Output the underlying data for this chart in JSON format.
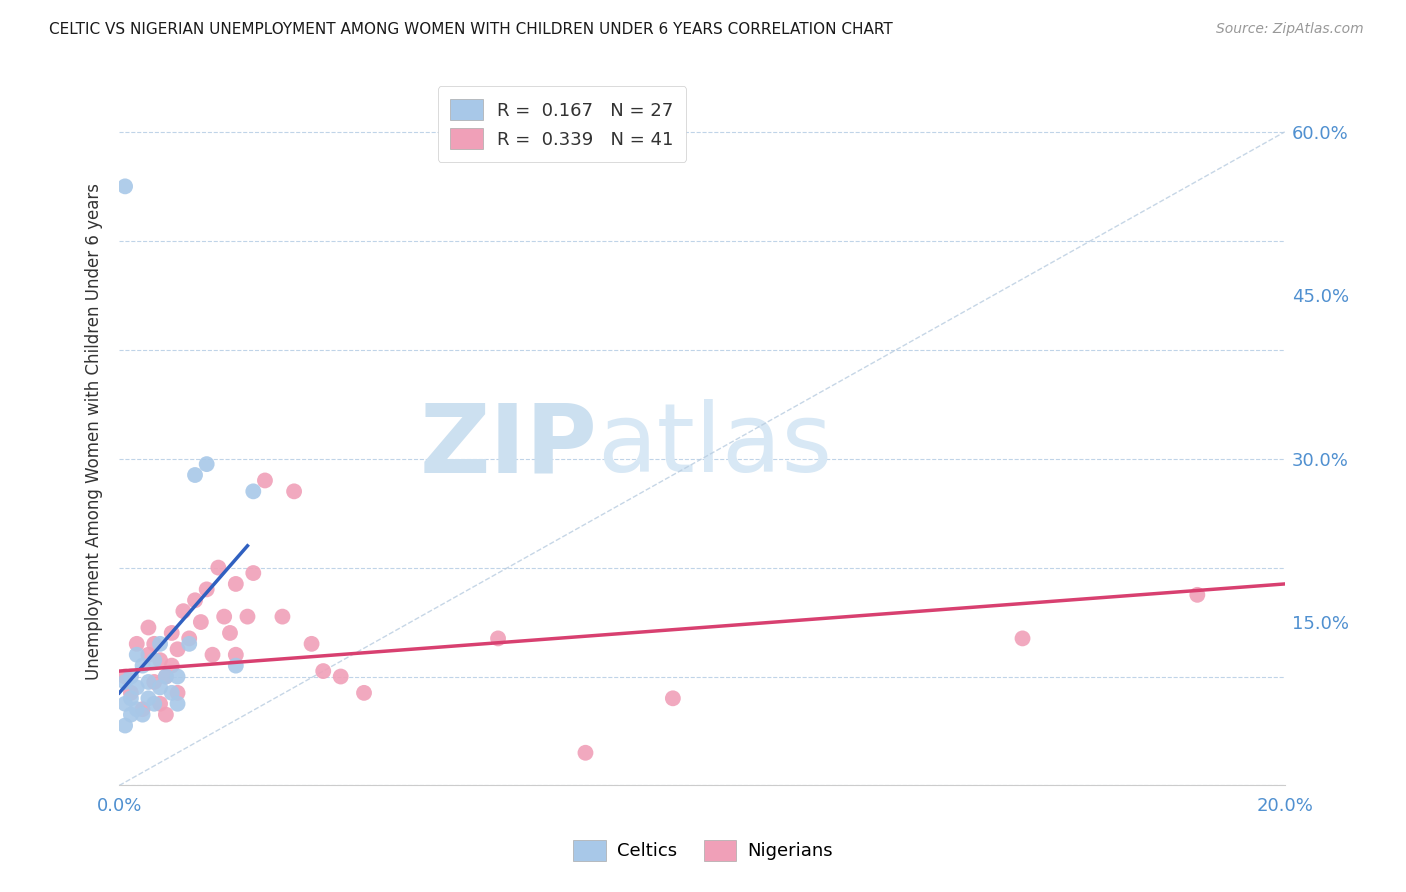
{
  "title": "CELTIC VS NIGERIAN UNEMPLOYMENT AMONG WOMEN WITH CHILDREN UNDER 6 YEARS CORRELATION CHART",
  "source": "Source: ZipAtlas.com",
  "ylabel": "Unemployment Among Women with Children Under 6 years",
  "xlim": [
    0.0,
    0.2
  ],
  "ylim": [
    0.0,
    0.65
  ],
  "xtick_labels": [
    "0.0%",
    "",
    "",
    "",
    "20.0%"
  ],
  "ytick_labels_right": [
    "",
    "15.0%",
    "30.0%",
    "45.0%",
    "60.0%"
  ],
  "xticks": [
    0.0,
    0.05,
    0.1,
    0.15,
    0.2
  ],
  "yticks": [
    0.0,
    0.15,
    0.3,
    0.45,
    0.6
  ],
  "celtics_R": 0.167,
  "celtics_N": 27,
  "nigerians_R": 0.339,
  "nigerians_N": 41,
  "celtics_color": "#a8c8e8",
  "nigerians_color": "#f0a0b8",
  "celtics_line_color": "#3060c0",
  "nigerians_line_color": "#d84070",
  "diagonal_color": "#b8cce0",
  "background_color": "#ffffff",
  "celtics_x": [
    0.001,
    0.001,
    0.001,
    0.002,
    0.002,
    0.002,
    0.003,
    0.003,
    0.003,
    0.004,
    0.004,
    0.005,
    0.005,
    0.006,
    0.006,
    0.007,
    0.007,
    0.008,
    0.009,
    0.01,
    0.01,
    0.012,
    0.013,
    0.015,
    0.02,
    0.023,
    0.001
  ],
  "celtics_y": [
    0.055,
    0.075,
    0.095,
    0.065,
    0.08,
    0.1,
    0.07,
    0.09,
    0.12,
    0.065,
    0.11,
    0.08,
    0.095,
    0.075,
    0.115,
    0.09,
    0.13,
    0.1,
    0.085,
    0.075,
    0.1,
    0.13,
    0.285,
    0.295,
    0.11,
    0.27,
    0.55
  ],
  "nigerians_x": [
    0.001,
    0.002,
    0.003,
    0.004,
    0.005,
    0.005,
    0.006,
    0.006,
    0.007,
    0.007,
    0.008,
    0.008,
    0.009,
    0.009,
    0.01,
    0.01,
    0.011,
    0.012,
    0.013,
    0.014,
    0.015,
    0.016,
    0.017,
    0.018,
    0.019,
    0.02,
    0.02,
    0.022,
    0.023,
    0.025,
    0.028,
    0.03,
    0.033,
    0.035,
    0.038,
    0.042,
    0.065,
    0.08,
    0.095,
    0.155,
    0.185
  ],
  "nigerians_y": [
    0.1,
    0.085,
    0.13,
    0.07,
    0.12,
    0.145,
    0.095,
    0.13,
    0.075,
    0.115,
    0.065,
    0.1,
    0.11,
    0.14,
    0.085,
    0.125,
    0.16,
    0.135,
    0.17,
    0.15,
    0.18,
    0.12,
    0.2,
    0.155,
    0.14,
    0.12,
    0.185,
    0.155,
    0.195,
    0.28,
    0.155,
    0.27,
    0.13,
    0.105,
    0.1,
    0.085,
    0.135,
    0.03,
    0.08,
    0.135,
    0.175
  ],
  "celtics_line_x": [
    0.0,
    0.022
  ],
  "celtics_line_y": [
    0.085,
    0.22
  ],
  "nigerians_line_x": [
    0.0,
    0.2
  ],
  "nigerians_line_y": [
    0.105,
    0.185
  ]
}
